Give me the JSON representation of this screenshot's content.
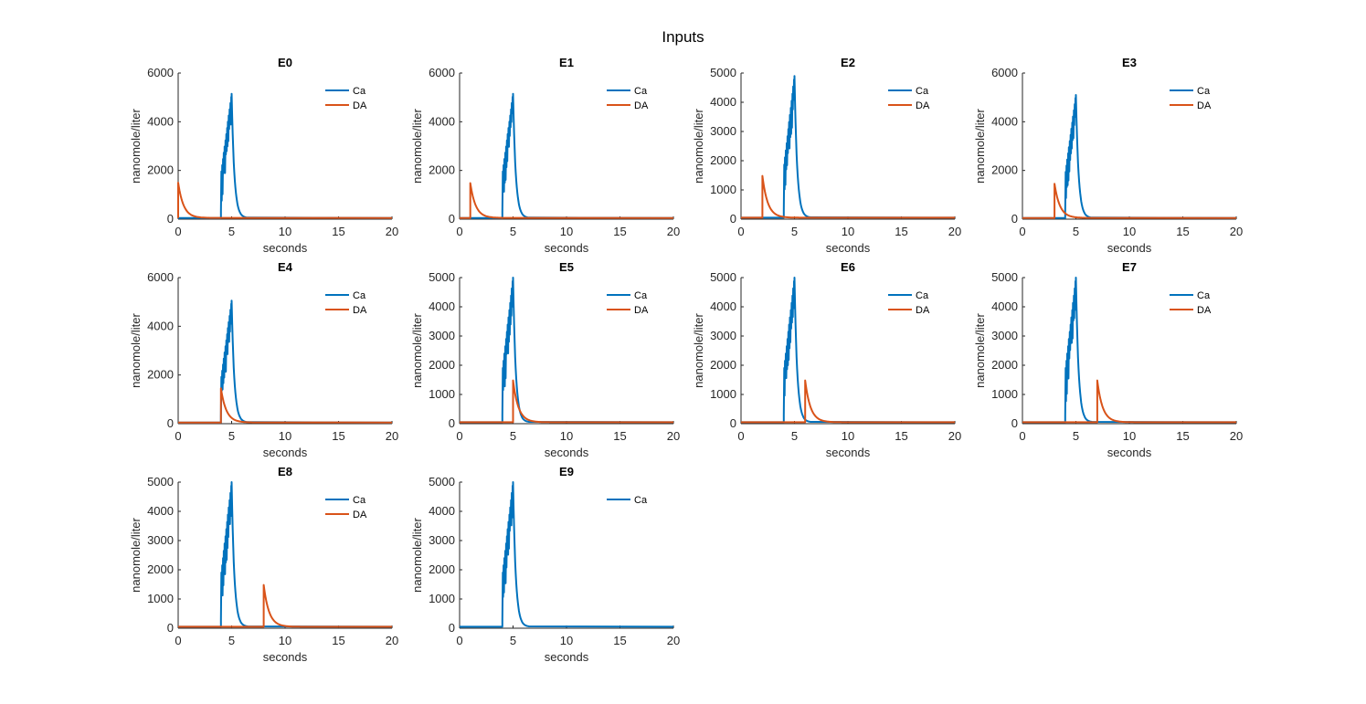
{
  "figure": {
    "title": "Inputs"
  },
  "colors": {
    "ca": "#0072BD",
    "da": "#D95319",
    "axis": "#262626"
  },
  "chart_data": [
    {
      "type": "line",
      "title": "E0",
      "xlabel": "seconds",
      "ylabel": "nanomole/liter",
      "xlim": [
        0,
        20
      ],
      "ylim": [
        0,
        6000
      ],
      "xticks": [
        0,
        5,
        10,
        15,
        20
      ],
      "yticks": [
        0,
        2000,
        4000,
        6000
      ],
      "legend": "top-right",
      "grid": false,
      "series": [
        {
          "name": "Ca",
          "color": "#0072BD",
          "pulse_start": 4.0,
          "pulse_end": 5.0,
          "baseline": 50,
          "peak": 5150,
          "decay_tau": 0.25
        },
        {
          "name": "DA",
          "color": "#D95319",
          "onset": 0.0,
          "peak": 1500,
          "baseline": 50,
          "decay_tau": 0.5
        }
      ]
    },
    {
      "type": "line",
      "title": "E1",
      "xlabel": "seconds",
      "ylabel": "nanomole/liter",
      "xlim": [
        0,
        20
      ],
      "ylim": [
        0,
        6000
      ],
      "xticks": [
        0,
        5,
        10,
        15,
        20
      ],
      "yticks": [
        0,
        2000,
        4000,
        6000
      ],
      "legend": "top-right",
      "grid": false,
      "series": [
        {
          "name": "Ca",
          "color": "#0072BD",
          "pulse_start": 4.0,
          "pulse_end": 5.0,
          "baseline": 50,
          "peak": 5150,
          "decay_tau": 0.25
        },
        {
          "name": "DA",
          "color": "#D95319",
          "onset": 1.0,
          "peak": 1480,
          "baseline": 50,
          "decay_tau": 0.5
        }
      ]
    },
    {
      "type": "line",
      "title": "E2",
      "xlabel": "seconds",
      "ylabel": "nanomole/liter",
      "xlim": [
        0,
        20
      ],
      "ylim": [
        0,
        5000
      ],
      "xticks": [
        0,
        5,
        10,
        15,
        20
      ],
      "yticks": [
        0,
        1000,
        2000,
        3000,
        4000,
        5000
      ],
      "legend": "top-right",
      "grid": false,
      "series": [
        {
          "name": "Ca",
          "color": "#0072BD",
          "pulse_start": 4.0,
          "pulse_end": 5.0,
          "baseline": 50,
          "peak": 4900,
          "decay_tau": 0.25
        },
        {
          "name": "DA",
          "color": "#D95319",
          "onset": 2.0,
          "peak": 1480,
          "baseline": 50,
          "decay_tau": 0.5
        }
      ]
    },
    {
      "type": "line",
      "title": "E3",
      "xlabel": "seconds",
      "ylabel": "nanomole/liter",
      "xlim": [
        0,
        20
      ],
      "ylim": [
        0,
        6000
      ],
      "xticks": [
        0,
        5,
        10,
        15,
        20
      ],
      "yticks": [
        0,
        2000,
        4000,
        6000
      ],
      "legend": "top-right",
      "grid": false,
      "series": [
        {
          "name": "Ca",
          "color": "#0072BD",
          "pulse_start": 4.0,
          "pulse_end": 5.0,
          "baseline": 50,
          "peak": 5100,
          "decay_tau": 0.25
        },
        {
          "name": "DA",
          "color": "#D95319",
          "onset": 3.0,
          "peak": 1450,
          "baseline": 50,
          "decay_tau": 0.5
        }
      ]
    },
    {
      "type": "line",
      "title": "E4",
      "xlabel": "seconds",
      "ylabel": "nanomole/liter",
      "xlim": [
        0,
        20
      ],
      "ylim": [
        0,
        6000
      ],
      "xticks": [
        0,
        5,
        10,
        15,
        20
      ],
      "yticks": [
        0,
        2000,
        4000,
        6000
      ],
      "legend": "top-right",
      "grid": false,
      "series": [
        {
          "name": "Ca",
          "color": "#0072BD",
          "pulse_start": 4.0,
          "pulse_end": 5.0,
          "baseline": 50,
          "peak": 5050,
          "decay_tau": 0.25
        },
        {
          "name": "DA",
          "color": "#D95319",
          "onset": 4.0,
          "peak": 1450,
          "baseline": 50,
          "decay_tau": 0.5
        }
      ]
    },
    {
      "type": "line",
      "title": "E5",
      "xlabel": "seconds",
      "ylabel": "nanomole/liter",
      "xlim": [
        0,
        20
      ],
      "ylim": [
        0,
        5000
      ],
      "xticks": [
        0,
        5,
        10,
        15,
        20
      ],
      "yticks": [
        0,
        1000,
        2000,
        3000,
        4000,
        5000
      ],
      "legend": "top-right",
      "grid": false,
      "series": [
        {
          "name": "Ca",
          "color": "#0072BD",
          "pulse_start": 4.0,
          "pulse_end": 5.0,
          "baseline": 50,
          "peak": 5000,
          "decay_tau": 0.25
        },
        {
          "name": "DA",
          "color": "#D95319",
          "onset": 5.0,
          "peak": 1480,
          "baseline": 50,
          "decay_tau": 0.5
        }
      ]
    },
    {
      "type": "line",
      "title": "E6",
      "xlabel": "seconds",
      "ylabel": "nanomole/liter",
      "xlim": [
        0,
        20
      ],
      "ylim": [
        0,
        5000
      ],
      "xticks": [
        0,
        5,
        10,
        15,
        20
      ],
      "yticks": [
        0,
        1000,
        2000,
        3000,
        4000,
        5000
      ],
      "legend": "top-right",
      "grid": false,
      "series": [
        {
          "name": "Ca",
          "color": "#0072BD",
          "pulse_start": 4.0,
          "pulse_end": 5.0,
          "baseline": 50,
          "peak": 5000,
          "decay_tau": 0.25
        },
        {
          "name": "DA",
          "color": "#D95319",
          "onset": 6.0,
          "peak": 1480,
          "baseline": 50,
          "decay_tau": 0.5
        }
      ]
    },
    {
      "type": "line",
      "title": "E7",
      "xlabel": "seconds",
      "ylabel": "nanomole/liter",
      "xlim": [
        0,
        20
      ],
      "ylim": [
        0,
        5000
      ],
      "xticks": [
        0,
        5,
        10,
        15,
        20
      ],
      "yticks": [
        0,
        1000,
        2000,
        3000,
        4000,
        5000
      ],
      "legend": "top-right",
      "grid": false,
      "series": [
        {
          "name": "Ca",
          "color": "#0072BD",
          "pulse_start": 4.0,
          "pulse_end": 5.0,
          "baseline": 50,
          "peak": 5000,
          "decay_tau": 0.25
        },
        {
          "name": "DA",
          "color": "#D95319",
          "onset": 7.0,
          "peak": 1480,
          "baseline": 50,
          "decay_tau": 0.5
        }
      ]
    },
    {
      "type": "line",
      "title": "E8",
      "xlabel": "seconds",
      "ylabel": "nanomole/liter",
      "xlim": [
        0,
        20
      ],
      "ylim": [
        0,
        5000
      ],
      "xticks": [
        0,
        5,
        10,
        15,
        20
      ],
      "yticks": [
        0,
        1000,
        2000,
        3000,
        4000,
        5000
      ],
      "legend": "top-right",
      "grid": false,
      "series": [
        {
          "name": "Ca",
          "color": "#0072BD",
          "pulse_start": 4.0,
          "pulse_end": 5.0,
          "baseline": 50,
          "peak": 5000,
          "decay_tau": 0.25
        },
        {
          "name": "DA",
          "color": "#D95319",
          "onset": 8.0,
          "peak": 1480,
          "baseline": 50,
          "decay_tau": 0.5
        }
      ]
    },
    {
      "type": "line",
      "title": "E9",
      "xlabel": "seconds",
      "ylabel": "nanomole/liter",
      "xlim": [
        0,
        20
      ],
      "ylim": [
        0,
        5000
      ],
      "xticks": [
        0,
        5,
        10,
        15,
        20
      ],
      "yticks": [
        0,
        1000,
        2000,
        3000,
        4000,
        5000
      ],
      "legend": "top-right",
      "grid": false,
      "series": [
        {
          "name": "Ca",
          "color": "#0072BD",
          "pulse_start": 4.0,
          "pulse_end": 5.0,
          "baseline": 50,
          "peak": 5000,
          "decay_tau": 0.25
        }
      ]
    }
  ]
}
